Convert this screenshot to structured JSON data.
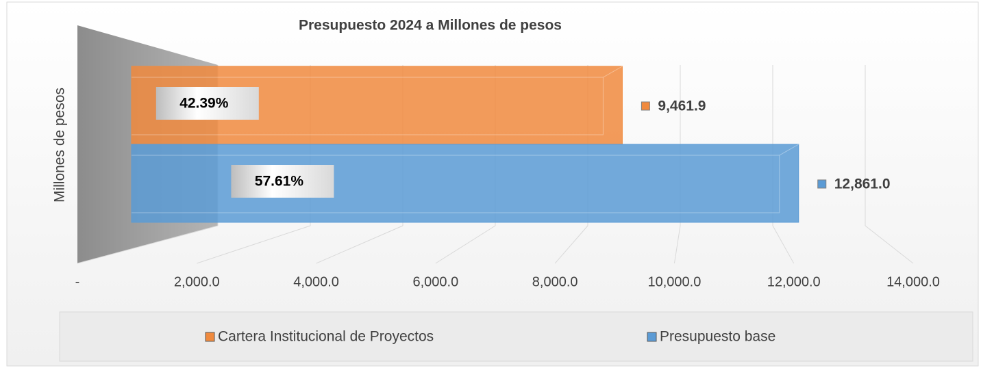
{
  "chart_data": {
    "type": "bar",
    "orientation": "horizontal",
    "title": "Presupuesto 2024 a Millones  de pesos",
    "y_label": "Millones de pesos",
    "series": [
      {
        "name": "Cartera Institucional de Proyectos",
        "color": "#f08a3e",
        "values": [
          9461.9
        ],
        "value_labels": [
          "9,461.9"
        ],
        "share": 42.39,
        "share_label": "42.39%"
      },
      {
        "name": "Presupuesto base",
        "color": "#5b9bd5",
        "values": [
          12861.0
        ],
        "value_labels": [
          "12,861.0"
        ],
        "share": 57.61,
        "share_label": "57.61%"
      }
    ],
    "xlim": [
      0,
      14000
    ],
    "xticks": [
      {
        "value": 0,
        "label": "-"
      },
      {
        "value": 2000,
        "label": "2,000.0"
      },
      {
        "value": 4000,
        "label": "4,000.0"
      },
      {
        "value": 6000,
        "label": "6,000.0"
      },
      {
        "value": 8000,
        "label": "8,000.0"
      },
      {
        "value": 10000,
        "label": "10,000.0"
      },
      {
        "value": 12000,
        "label": "12,000.0"
      },
      {
        "value": 14000,
        "label": "14,000.0"
      }
    ],
    "grid": true,
    "legend": "bottom"
  }
}
